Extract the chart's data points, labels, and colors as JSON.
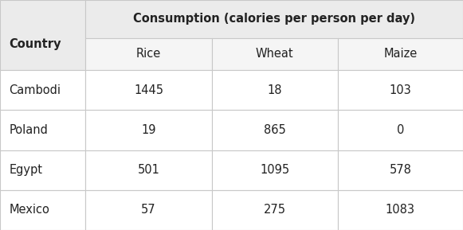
{
  "header_col": "Country",
  "header_span": "Consumption (calories per person per day)",
  "sub_headers": [
    "Rice",
    "Wheat",
    "Maize"
  ],
  "countries": [
    "Cambodi",
    "Poland",
    "Egypt",
    "Mexico"
  ],
  "data": [
    [
      1445,
      18,
      103
    ],
    [
      19,
      865,
      0
    ],
    [
      501,
      1095,
      578
    ],
    [
      57,
      275,
      1083
    ]
  ],
  "fig_bg": "#ffffff",
  "header_bg": "#ebebeb",
  "subheader_bg": "#f5f5f5",
  "row_bg": "#ffffff",
  "border_color": "#c8c8c8",
  "text_color": "#222222",
  "header_fontsize": 10.5,
  "cell_fontsize": 10.5
}
